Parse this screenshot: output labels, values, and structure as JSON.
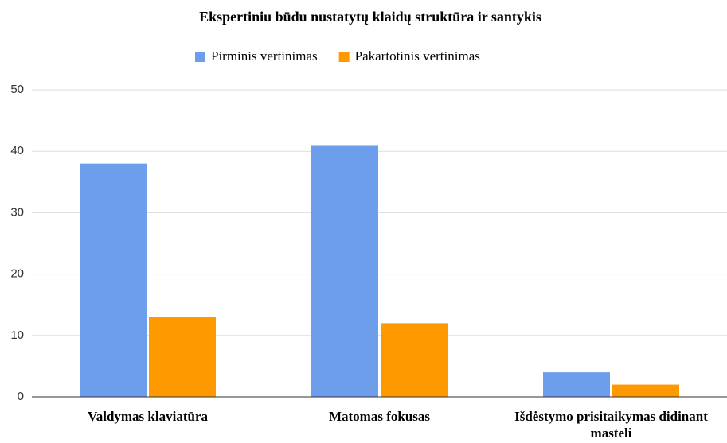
{
  "chart_data": {
    "type": "bar",
    "title": "Ekspertiniu būdu nustatytų klaidų struktūra ir santykis",
    "categories": [
      "Valdymas klaviatūra",
      "Matomas fokusas",
      "Išdėstymo prisitaikymas didinant masteli"
    ],
    "series": [
      {
        "name": "Pirminis vertinimas",
        "color": "#6d9eeb",
        "values": [
          38,
          41,
          4
        ]
      },
      {
        "name": "Pakartotinis vertinimas",
        "color": "#ff9900",
        "values": [
          13,
          12,
          2
        ]
      }
    ],
    "ylim": [
      0,
      50
    ],
    "yticks": [
      0,
      10,
      20,
      30,
      40,
      50
    ],
    "grid": true,
    "legend": "top"
  }
}
